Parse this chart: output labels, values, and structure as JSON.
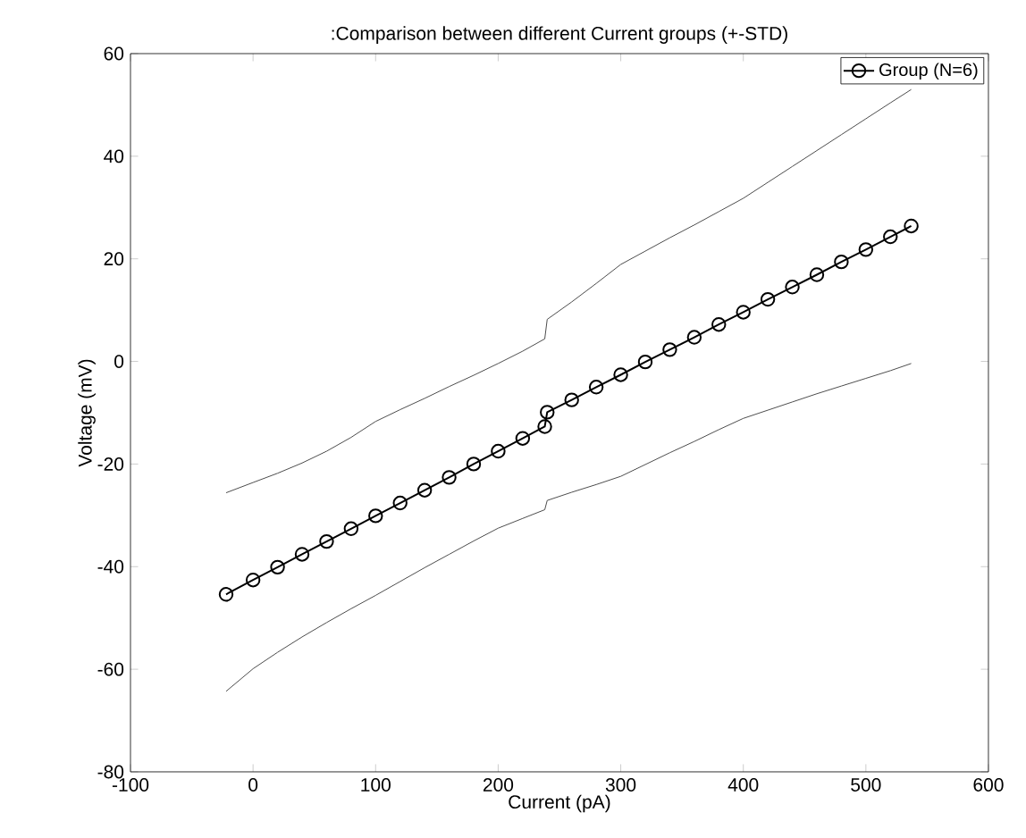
{
  "chart_data": {
    "type": "line",
    "title": ":Comparison between different Current groups (+-STD)",
    "xlabel": "Current (pA)",
    "ylabel": "Voltage (mV)",
    "x": [
      -22,
      0,
      20,
      40,
      60,
      80,
      100,
      120,
      140,
      160,
      180,
      200,
      220,
      238,
      240,
      260,
      280,
      300,
      320,
      340,
      360,
      380,
      400,
      420,
      440,
      460,
      480,
      500,
      520,
      537
    ],
    "series": [
      {
        "name": "Group  (N=6)",
        "color": "#000000",
        "values": [
          -45.4,
          -42.6,
          -40.1,
          -37.6,
          -35.1,
          -32.6,
          -30.1,
          -27.6,
          -25.1,
          -22.6,
          -20.0,
          -17.5,
          -15.0,
          -12.7,
          -9.9,
          -7.5,
          -5.0,
          -2.6,
          -0.1,
          2.3,
          4.7,
          7.2,
          9.6,
          12.1,
          14.5,
          16.9,
          19.4,
          21.8,
          24.3,
          26.4
        ]
      },
      {
        "color": "#4c4c4c",
        "marker": "none",
        "values": [
          -25.6,
          -23.6,
          -21.8,
          -19.8,
          -17.5,
          -14.8,
          -11.7,
          -9.4,
          -7.2,
          -4.9,
          -2.7,
          -0.4,
          2.0,
          4.4,
          8.2,
          11.6,
          15.2,
          18.9,
          21.5,
          24.1,
          26.6,
          29.2,
          31.8,
          34.9,
          38.0,
          41.1,
          44.2,
          47.3,
          50.4,
          53.0
        ]
      },
      {
        "color": "#4c4c4c",
        "marker": "none",
        "values": [
          -64.3,
          -59.9,
          -56.7,
          -53.7,
          -50.9,
          -48.2,
          -45.6,
          -42.9,
          -40.2,
          -37.6,
          -35.0,
          -32.5,
          -30.6,
          -28.9,
          -27.1,
          -25.5,
          -24.0,
          -22.4,
          -20.1,
          -17.8,
          -15.6,
          -13.3,
          -11.1,
          -9.5,
          -7.9,
          -6.3,
          -4.8,
          -3.3,
          -1.8,
          -0.4
        ]
      }
    ],
    "xlim": [
      -100,
      600
    ],
    "ylim": [
      -80,
      60
    ],
    "xticks": [
      -100,
      0,
      100,
      200,
      300,
      400,
      500,
      600
    ],
    "yticks": [
      -80,
      -60,
      -40,
      -20,
      0,
      20,
      40,
      60
    ],
    "grid": false,
    "legend": "top right",
    "marker": "circle",
    "line_style": "solid"
  }
}
